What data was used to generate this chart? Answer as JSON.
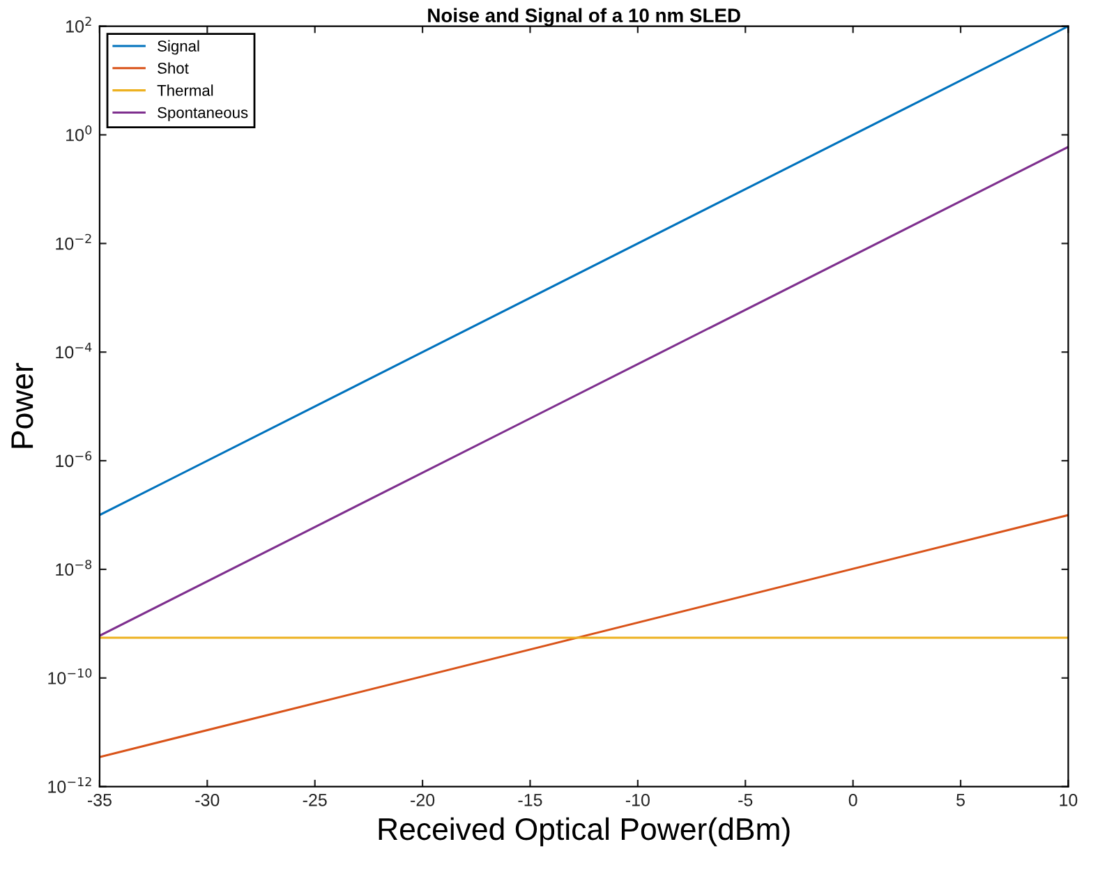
{
  "chart_data": {
    "type": "line",
    "title": "Noise and Signal of a 10 nm SLED",
    "xlabel": "Received Optical Power(dBm)",
    "ylabel": "Power",
    "x": [
      -35,
      10
    ],
    "series": [
      {
        "name": "Signal",
        "color": "#0072bd",
        "values": [
          1e-07,
          100
        ]
      },
      {
        "name": "Shot",
        "color": "#d95319",
        "values": [
          3.5e-12,
          1e-07
        ]
      },
      {
        "name": "Thermal",
        "color": "#edb120",
        "values": [
          5.5e-10,
          5.5e-10
        ]
      },
      {
        "name": "Spontaneous",
        "color": "#7e2f8e",
        "values": [
          6e-10,
          0.6
        ]
      }
    ],
    "log": "y",
    "xlim": [
      -35,
      10
    ],
    "xticks": [
      -35,
      -30,
      -25,
      -20,
      -15,
      -10,
      -5,
      0,
      5,
      10
    ],
    "ylim": [
      1e-12,
      100
    ],
    "yticks": [
      {
        "value": 1e-12,
        "label": "10$^{−12}$"
      },
      {
        "value": 1e-10,
        "label": "10$^{−10}$"
      },
      {
        "value": 1e-08,
        "label": "10$^{−8}$"
      },
      {
        "value": 1e-06,
        "label": "10$^{−6}$"
      },
      {
        "value": 0.0001,
        "label": "10$^{−4}$"
      },
      {
        "value": 0.01,
        "label": "10$^{−2}$"
      },
      {
        "value": 1,
        "label": "10$^{0}$"
      },
      {
        "value": 100,
        "label": "10$^{2}$"
      }
    ],
    "grid": false,
    "legend": "top left",
    "marker": "none",
    "line_style": "solid"
  }
}
